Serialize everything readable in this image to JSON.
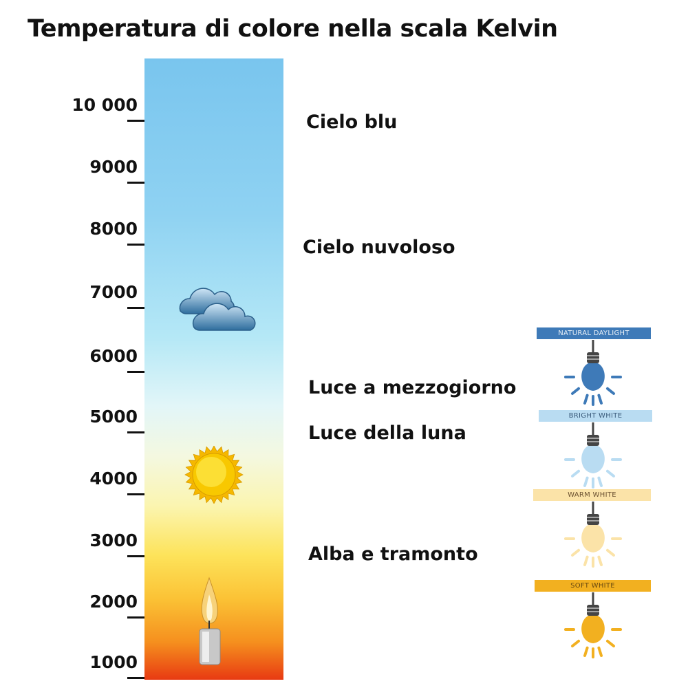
{
  "title": "Temperatura di colore nella scala Kelvin",
  "scale": {
    "unit": "K",
    "ticks": [
      "10 000",
      "9000",
      "8000",
      "7000",
      "6000",
      "5000",
      "4000",
      "3000",
      "2000",
      "1000"
    ],
    "gradient_colors": [
      "#79c5ee",
      "#e2f6f8",
      "#fbf5b0",
      "#fde35a",
      "#f58f1e",
      "#e83a12"
    ]
  },
  "categories": [
    "Cielo blu",
    "Cielo nuvoloso",
    "Luce a mezzogiorno",
    "Luce della luna",
    "Alba e tramonto"
  ],
  "icons": [
    "cloud-icon",
    "sun-icon",
    "candle-icon"
  ],
  "bulbs": [
    {
      "label": "NATURAL DAYLIGHT",
      "color": "#3e7ab8",
      "text_color": "#e8f0f8"
    },
    {
      "label": "BRIGHT WHITE",
      "color": "#b9dcf2",
      "text_color": "#3a5a7a"
    },
    {
      "label": "WARM WHITE",
      "color": "#fbe3a8",
      "text_color": "#6a5030"
    },
    {
      "label": "SOFT WHITE",
      "color": "#f2b020",
      "text_color": "#6a4a10"
    }
  ]
}
